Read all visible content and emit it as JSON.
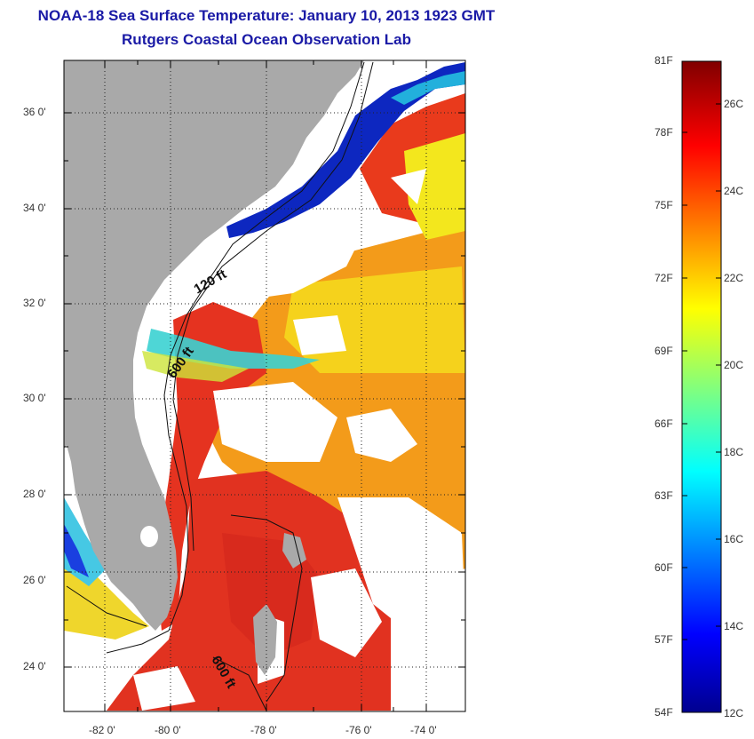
{
  "header": {
    "title": "NOAA-18 Sea Surface Temperature:  January 10, 2013 1923 GMT",
    "subtitle": "Rutgers Coastal Ocean Observation Lab"
  },
  "map": {
    "lat_labels": [
      "36 0'",
      "34 0'",
      "32 0'",
      "30 0'",
      "28 0'",
      "26 0'",
      "24 0'"
    ],
    "lon_labels": [
      "-82 0'",
      "-80 0'",
      "-78 0'",
      "-76 0'",
      "-74 0'"
    ],
    "lat_range": [
      23,
      37.2
    ],
    "lon_range": [
      -83,
      -73
    ],
    "contours": [
      "120 ft",
      "600 ft",
      "600 ft"
    ],
    "colors": {
      "land": "#a9a9a9",
      "no_data": "#ffffff",
      "warm": "#e8311b",
      "cold": "#0a1fb0"
    }
  },
  "colorbar": {
    "fahrenheit_labels": [
      "81F",
      "78F",
      "75F",
      "72F",
      "69F",
      "66F",
      "63F",
      "60F",
      "57F",
      "54F"
    ],
    "celsius_labels": [
      "26C",
      "24C",
      "22C",
      "20C",
      "18C",
      "16C",
      "14C",
      "12C"
    ],
    "colormap": "jet"
  }
}
